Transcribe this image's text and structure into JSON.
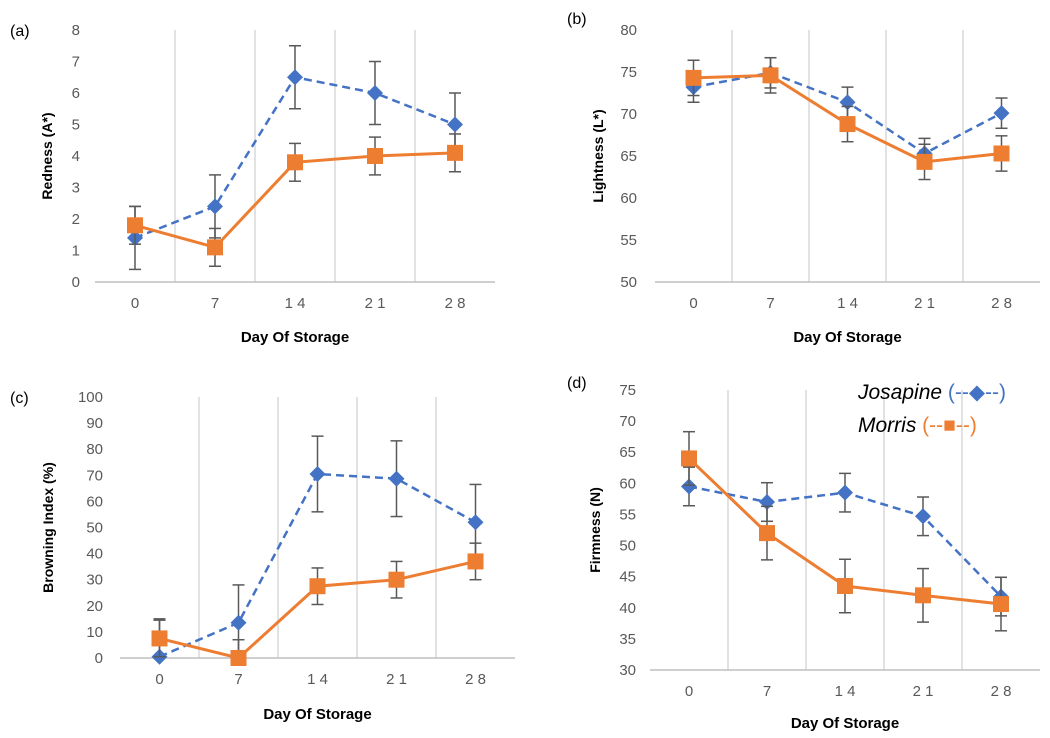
{
  "legend": {
    "entries": [
      {
        "name": "Josapine",
        "suffix": " (--◆--)"
      },
      {
        "name": "Morris",
        "suffix": " (--■--)"
      }
    ]
  },
  "colors": {
    "josapine": "#4472C4",
    "morris": "#ED7D31",
    "error_bar": "#595959",
    "grid": "#D9D9D9",
    "axis": "#BFBFBF"
  },
  "chart_data": [
    {
      "type": "line",
      "panel": "(a)",
      "title": "",
      "xlabel": "Day Of Storage",
      "ylabel": "Redness (A*)",
      "categories": [
        "0",
        "7",
        "1 4",
        "2 1",
        "2 8"
      ],
      "ylim": [
        0,
        8
      ],
      "yticks": [
        0,
        1,
        2,
        3,
        4,
        5,
        6,
        7,
        8
      ],
      "series": [
        {
          "name": "Josapine",
          "values": [
            1.4,
            2.4,
            6.5,
            6.0,
            5.0
          ],
          "errors": [
            1.0,
            1.0,
            1.0,
            1.0,
            1.0
          ]
        },
        {
          "name": "Morris",
          "values": [
            1.8,
            1.1,
            3.8,
            4.0,
            4.1
          ],
          "errors": [
            0.6,
            0.6,
            0.6,
            0.6,
            0.6
          ]
        }
      ]
    },
    {
      "type": "line",
      "panel": "(b)",
      "title": "",
      "xlabel": "Day Of Storage",
      "ylabel": "Lightness (L*)",
      "categories": [
        "0",
        "7",
        "1 4",
        "2 1",
        "2 8"
      ],
      "ylim": [
        50,
        80
      ],
      "yticks": [
        50,
        55,
        60,
        65,
        70,
        75,
        80
      ],
      "series": [
        {
          "name": "Josapine",
          "values": [
            73.2,
            74.9,
            71.4,
            65.3,
            70.1
          ],
          "errors": [
            1.8,
            1.8,
            1.8,
            1.8,
            1.8
          ]
        },
        {
          "name": "Morris",
          "values": [
            74.3,
            74.6,
            68.8,
            64.3,
            65.3
          ],
          "errors": [
            2.1,
            2.1,
            2.1,
            2.1,
            2.1
          ]
        }
      ]
    },
    {
      "type": "line",
      "panel": "(c)",
      "title": "",
      "xlabel": "Day Of Storage",
      "ylabel": "Browning Index (%)",
      "categories": [
        "0",
        "7",
        "1 4",
        "2 1",
        "2 8"
      ],
      "ylim": [
        0,
        100
      ],
      "yticks": [
        0,
        10,
        20,
        30,
        40,
        50,
        60,
        70,
        80,
        90,
        100
      ],
      "series": [
        {
          "name": "Josapine",
          "values": [
            0.5,
            13.5,
            70.5,
            68.7,
            52.0
          ],
          "errors": [
            14.5,
            14.5,
            14.5,
            14.5,
            14.5
          ]
        },
        {
          "name": "Morris",
          "values": [
            7.5,
            0,
            27.5,
            30.0,
            37.0
          ],
          "errors": [
            7.0,
            7.0,
            7.0,
            7.0,
            7.0
          ]
        }
      ]
    },
    {
      "type": "line",
      "panel": "(d)",
      "title": "",
      "xlabel": "Day Of Storage",
      "ylabel": "Firmness (N)",
      "categories": [
        "0",
        "7",
        "1 4",
        "2 1",
        "2 8"
      ],
      "ylim": [
        30,
        75
      ],
      "yticks": [
        30,
        35,
        40,
        45,
        50,
        55,
        60,
        65,
        70,
        75
      ],
      "series": [
        {
          "name": "Josapine",
          "values": [
            59.5,
            57.0,
            58.5,
            54.7,
            41.8
          ],
          "errors": [
            3.1,
            3.1,
            3.1,
            3.1,
            3.1
          ]
        },
        {
          "name": "Morris",
          "values": [
            64.0,
            52.0,
            43.5,
            42.0,
            40.6
          ],
          "errors": [
            4.3,
            4.3,
            4.3,
            4.3,
            4.3
          ]
        }
      ]
    }
  ]
}
